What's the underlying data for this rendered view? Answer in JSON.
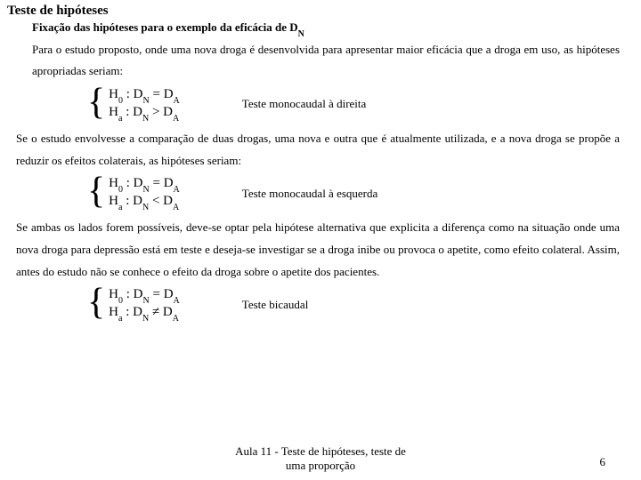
{
  "title": "Teste de hipóteses",
  "subtitle_prefix": "Fixação das hipóteses para o exemplo da eficácia de D",
  "subtitle_sub": "N",
  "para1": "Para o estudo proposto, onde uma nova droga é desenvolvida para apresentar maior eficácia que a droga em uso, as hipóteses apropriadas seriam:",
  "hyp1": {
    "h0_left": "H",
    "h0_s1": "0",
    "col": " : D",
    "dn_s": "N",
    "eq": " = D",
    "da_s": "A",
    "ha_left": "H",
    "ha_s1": "a",
    "rel": " > D",
    "label": "Teste monocaudal à direita"
  },
  "para2": "Se o estudo envolvesse a comparação de duas drogas, uma nova e outra que é atualmente utilizada, e a nova droga se propõe a reduzir os efeitos colaterais, as hipóteses seriam:",
  "hyp2": {
    "rel": " < D",
    "label": "Teste monocaudal à esquerda"
  },
  "para3": "Se ambas os lados forem possíveis, deve-se optar pela hipótese alternativa que explicita a diferença como na situação onde uma nova droga para depressão está em teste e deseja-se investigar se a droga inibe ou provoca o apetite, como efeito colateral. Assim, antes do estudo não se conhece o efeito da droga sobre o apetite dos pacientes.",
  "hyp3": {
    "eq": " = D",
    "rel": " ≠ D",
    "label": "Teste bicaudal"
  },
  "footer_line1": "Aula 11 - Teste de hipóteses, teste de",
  "footer_line2": "uma proporção",
  "page_number": "6"
}
